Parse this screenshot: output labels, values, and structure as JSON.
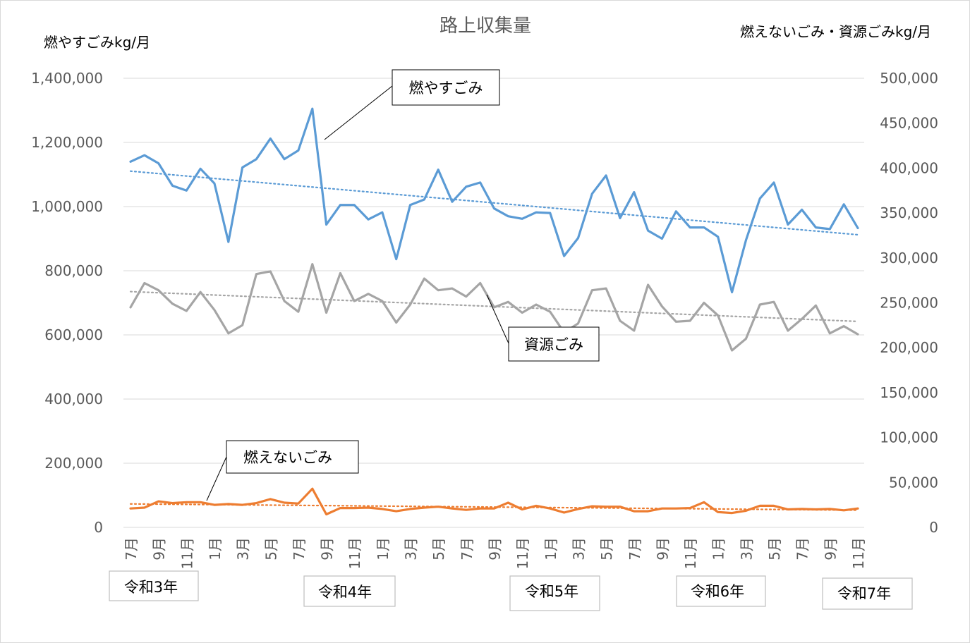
{
  "chart_data": {
    "type": "line",
    "title": "路上収集量",
    "ylabel_left": "燃やすごみkg/月",
    "ylabel_right": "燃えないごみ・資源ごみkg/月",
    "ylim_left": [
      0,
      1400000
    ],
    "ylim_right": [
      0,
      500000
    ],
    "yticks_left": [
      "0",
      "200,000",
      "400,000",
      "600,000",
      "800,000",
      "1,000,000",
      "1,200,000",
      "1,400,000"
    ],
    "yticks_right": [
      "0",
      "50,000",
      "100,000",
      "150,000",
      "200,000",
      "250,000",
      "300,000",
      "350,000",
      "400,000",
      "450,000",
      "500,000"
    ],
    "grid": true,
    "x_labels": [
      "7月",
      "9月",
      "11月",
      "1月",
      "3月",
      "5月",
      "7月",
      "9月",
      "11月",
      "1月",
      "3月",
      "5月",
      "7月",
      "9月",
      "11月",
      "1月",
      "3月",
      "5月",
      "7月",
      "9月",
      "11月",
      "1月",
      "3月",
      "5月",
      "7月",
      "9月",
      "11月"
    ],
    "year_labels": [
      "令和3年",
      "令和4年",
      "令和5年",
      "令和6年",
      "令和7年"
    ],
    "series": [
      {
        "name": "燃やすごみ",
        "axis": "left",
        "color": "#5b9bd5",
        "trend": true,
        "values": [
          1140000,
          1160000,
          1135000,
          1065000,
          1050000,
          1118000,
          1072000,
          890000,
          1122000,
          1148000,
          1212000,
          1148000,
          1175000,
          1305000,
          944000,
          1005000,
          1005000,
          960000,
          982000,
          836000,
          1005000,
          1022000,
          1115000,
          1015000,
          1062000,
          1075000,
          994000,
          970000,
          962000,
          982000,
          980000,
          846000,
          902000,
          1040000,
          1097000,
          964000,
          1045000,
          925000,
          900000,
          985000,
          935000,
          935000,
          906000,
          733000,
          895000,
          1025000,
          1075000,
          944000,
          990000,
          935000,
          930000,
          1007000,
          933000
        ]
      },
      {
        "name": "資源ごみ",
        "axis": "right",
        "color": "#a5a5a5",
        "trend": true,
        "values": [
          245000,
          272000,
          264000,
          249000,
          241000,
          262000,
          242000,
          216000,
          225000,
          282000,
          285000,
          252000,
          240000,
          293000,
          239000,
          283000,
          252000,
          260000,
          252000,
          228000,
          248000,
          277000,
          264000,
          266000,
          257000,
          272000,
          245000,
          251000,
          239000,
          248000,
          240000,
          217000,
          227000,
          264000,
          266000,
          230000,
          219000,
          270000,
          246000,
          229000,
          230000,
          250000,
          236000,
          197000,
          210000,
          248000,
          251000,
          219000,
          232000,
          247000,
          216000,
          224000,
          215000
        ]
      },
      {
        "name": "燃えないごみ",
        "axis": "right",
        "color": "#ed7d31",
        "trend": true,
        "values": [
          21000,
          22000,
          29000,
          27000,
          28000,
          28000,
          25000,
          26000,
          25000,
          27000,
          31500,
          27500,
          26500,
          43000,
          14500,
          21500,
          21500,
          22000,
          20500,
          18000,
          20500,
          22000,
          23000,
          21000,
          19500,
          21000,
          21000,
          27500,
          20000,
          24000,
          21000,
          16500,
          20500,
          23500,
          23000,
          23000,
          18000,
          18000,
          21000,
          21000,
          21500,
          28000,
          17000,
          16000,
          18500,
          24000,
          24000,
          20000,
          20500,
          20000,
          20500,
          19000,
          21000
        ]
      }
    ]
  }
}
